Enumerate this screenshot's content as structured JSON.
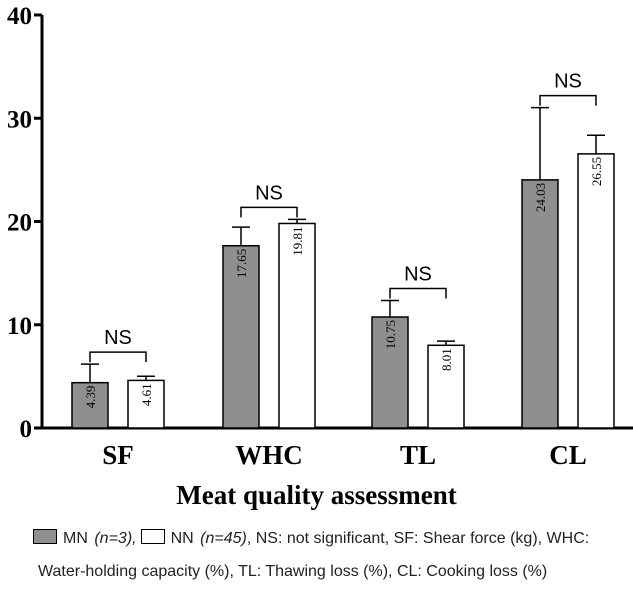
{
  "chart_data": {
    "type": "bar",
    "xlabel": "Meat quality assessment",
    "ylabel": "",
    "ylim": [
      0,
      40
    ],
    "yticks": [
      "0",
      "10",
      "20",
      "30",
      "40"
    ],
    "categories": [
      "SF",
      "WHC",
      "TL",
      "CL"
    ],
    "series": [
      {
        "name": "MN",
        "name_suffix": "(n=3)",
        "color": "#8f8f8f",
        "values": [
          4.39,
          17.65,
          10.75,
          24.03
        ],
        "value_labels": [
          "4.39",
          "17.65",
          "10.75",
          "24.03"
        ],
        "error": [
          1.8,
          1.8,
          1.6,
          7.0
        ]
      },
      {
        "name": "NN",
        "name_suffix": "(n=45)",
        "color": "#ffffff",
        "values": [
          4.61,
          19.81,
          8.01,
          26.55
        ],
        "value_labels": [
          "4.61",
          "19.81",
          "8.01",
          "26.55"
        ],
        "error": [
          0.4,
          0.4,
          0.4,
          1.8
        ]
      }
    ],
    "annotations": [
      "NS",
      "NS",
      "NS",
      "NS"
    ],
    "grid": false
  },
  "legend": {
    "mn_label": "MN",
    "mn_n": "(n=3),",
    "nn_label": "NN",
    "nn_n": "(n=45)",
    "line1_rest": ", NS: not significant, SF: Shear force (kg), WHC:",
    "line2": "Water-holding capacity (%), TL: Thawing loss (%), CL: Cooking loss (%)"
  }
}
